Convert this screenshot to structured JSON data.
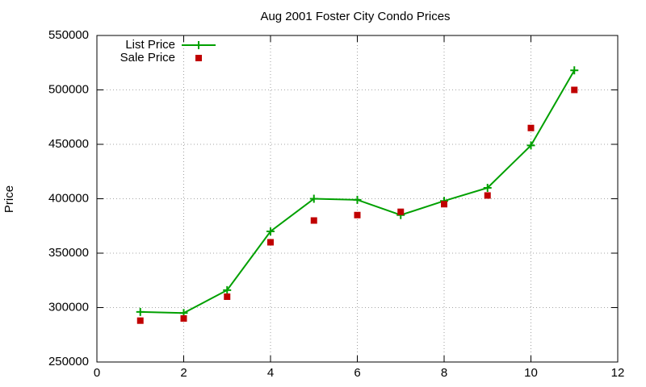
{
  "chart_data": {
    "type": "line",
    "title": "Aug 2001 Foster City Condo Prices",
    "y_label": "Price",
    "x": [
      1,
      2,
      3,
      4,
      5,
      6,
      7,
      8,
      9,
      10,
      11
    ],
    "series": [
      {
        "name": "List Price",
        "color": "#00a000",
        "marker": "plus",
        "line": true,
        "values": [
          296000,
          295000,
          316000,
          370000,
          400000,
          399000,
          385000,
          398000,
          410000,
          449000,
          518000
        ]
      },
      {
        "name": "Sale Price",
        "color": "#c00000",
        "marker": "square",
        "line": false,
        "values": [
          288000,
          290000,
          310000,
          360000,
          380000,
          385000,
          388000,
          395000,
          403000,
          465000,
          500000
        ]
      }
    ],
    "xlim": [
      0,
      12
    ],
    "xticks": [
      0,
      2,
      4,
      6,
      8,
      10,
      12
    ],
    "ylim": [
      250000,
      550000
    ],
    "yticks": [
      250000,
      300000,
      350000,
      400000,
      450000,
      500000,
      550000
    ],
    "grid": true,
    "legend": "top-left"
  }
}
